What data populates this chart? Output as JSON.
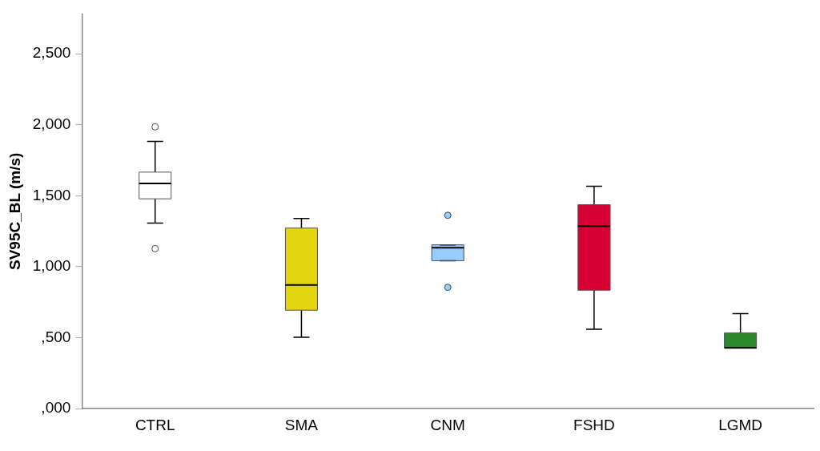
{
  "chart_data": {
    "type": "box",
    "ylabel": "SV95C_BL (m/s)",
    "categories": [
      "CTRL",
      "SMA",
      "CNM",
      "FSHD",
      "LGMD"
    ],
    "colors": [
      "#ffffff",
      "#e3d611",
      "#99ccff",
      "#d60032",
      "#2a8a2a"
    ],
    "boxes": [
      {
        "low": 1307,
        "q1": 1478,
        "median": 1586,
        "q3": 1666,
        "high": 1882,
        "outliers": [
          1985,
          1127
        ]
      },
      {
        "low": 503,
        "q1": 694,
        "median": 871,
        "q3": 1272,
        "high": 1340
      },
      {
        "low": 1042,
        "q1": 1042,
        "median": 1134,
        "q3": 1154,
        "high": 1154,
        "outliers": [
          1362,
          855
        ]
      },
      {
        "low": 559,
        "q1": 835,
        "median": 1286,
        "q3": 1436,
        "high": 1566
      },
      {
        "low": 429,
        "q1": 429,
        "median": 429,
        "q3": 533,
        "high": 669
      }
    ],
    "ylim": [
      0,
      2780
    ],
    "yticks": [
      {
        "value": 0,
        "label": ",000"
      },
      {
        "value": 500,
        "label": ",500"
      },
      {
        "value": 1000,
        "label": "1,000"
      },
      {
        "value": 1500,
        "label": "1,500"
      },
      {
        "value": 2000,
        "label": "2,000"
      },
      {
        "value": 2500,
        "label": "2,500"
      }
    ],
    "grid": false,
    "legend": false
  }
}
